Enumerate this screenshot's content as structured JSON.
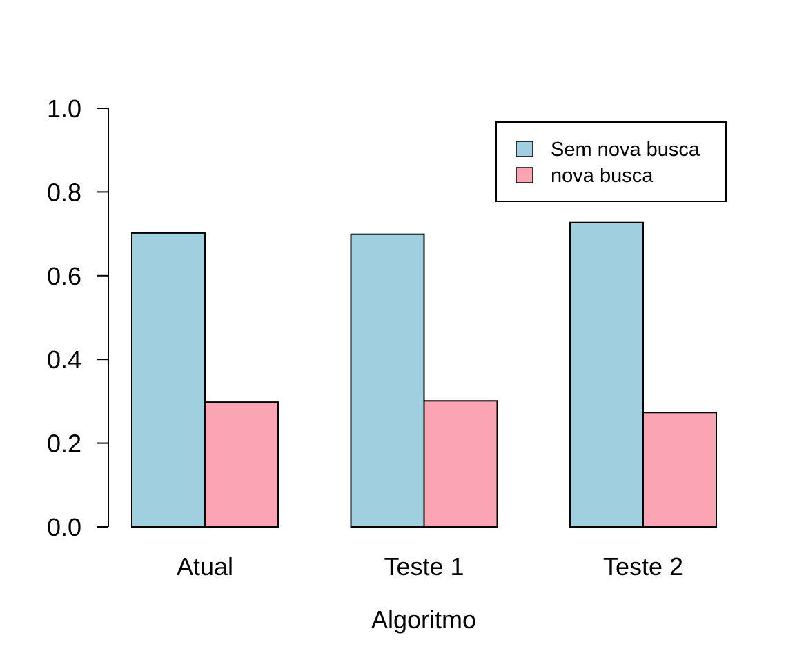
{
  "chart_data": {
    "type": "bar",
    "title": "",
    "xlabel": "Algoritmo",
    "ylabel": "",
    "categories": [
      "Atual",
      "Teste 1",
      "Teste 2"
    ],
    "series": [
      {
        "name": "Sem nova busca",
        "values": [
          0.702,
          0.699,
          0.727
        ],
        "color": "#A0CFE0"
      },
      {
        "name": "nova busca",
        "values": [
          0.298,
          0.301,
          0.273
        ],
        "color": "#FBA4B4"
      }
    ],
    "ylim": [
      0,
      1
    ],
    "yticks": [
      "0.0",
      "0.2",
      "0.4",
      "0.6",
      "0.8",
      "1.0"
    ],
    "grid": false,
    "legend_position": "top-right"
  }
}
